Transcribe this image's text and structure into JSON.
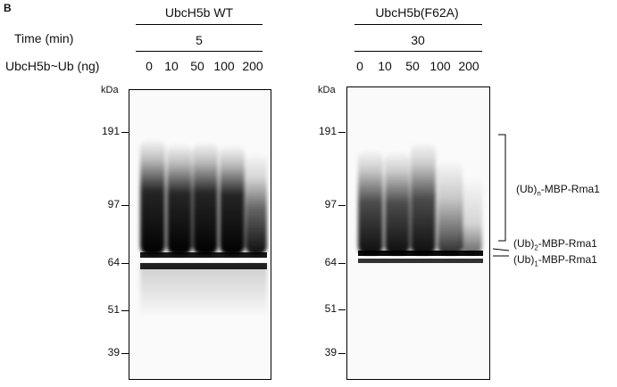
{
  "panel_label": "B",
  "left": {
    "condition": "UbcH5b WT",
    "time_value": "5",
    "lanes": [
      "0",
      "10",
      "50",
      "100",
      "200"
    ]
  },
  "right": {
    "condition": "UbcH5b(F62A)",
    "time_value": "30",
    "lanes": [
      "0",
      "10",
      "50",
      "100",
      "200"
    ]
  },
  "row_labels": {
    "time": "Time (min)",
    "amount": "UbcH5b~Ub (ng)"
  },
  "kda_label": "kDa",
  "markers": [
    "191",
    "97",
    "64",
    "51",
    "39"
  ],
  "band_labels": {
    "poly": {
      "pre": "(Ub)",
      "sub": "n",
      "post": "-MBP-Rma1"
    },
    "di": {
      "pre": "(Ub)",
      "sub": "2",
      "post": "-MBP-Rma1"
    },
    "mono": {
      "pre": "(Ub)",
      "sub": "1",
      "post": "-MBP-Rma1"
    }
  }
}
